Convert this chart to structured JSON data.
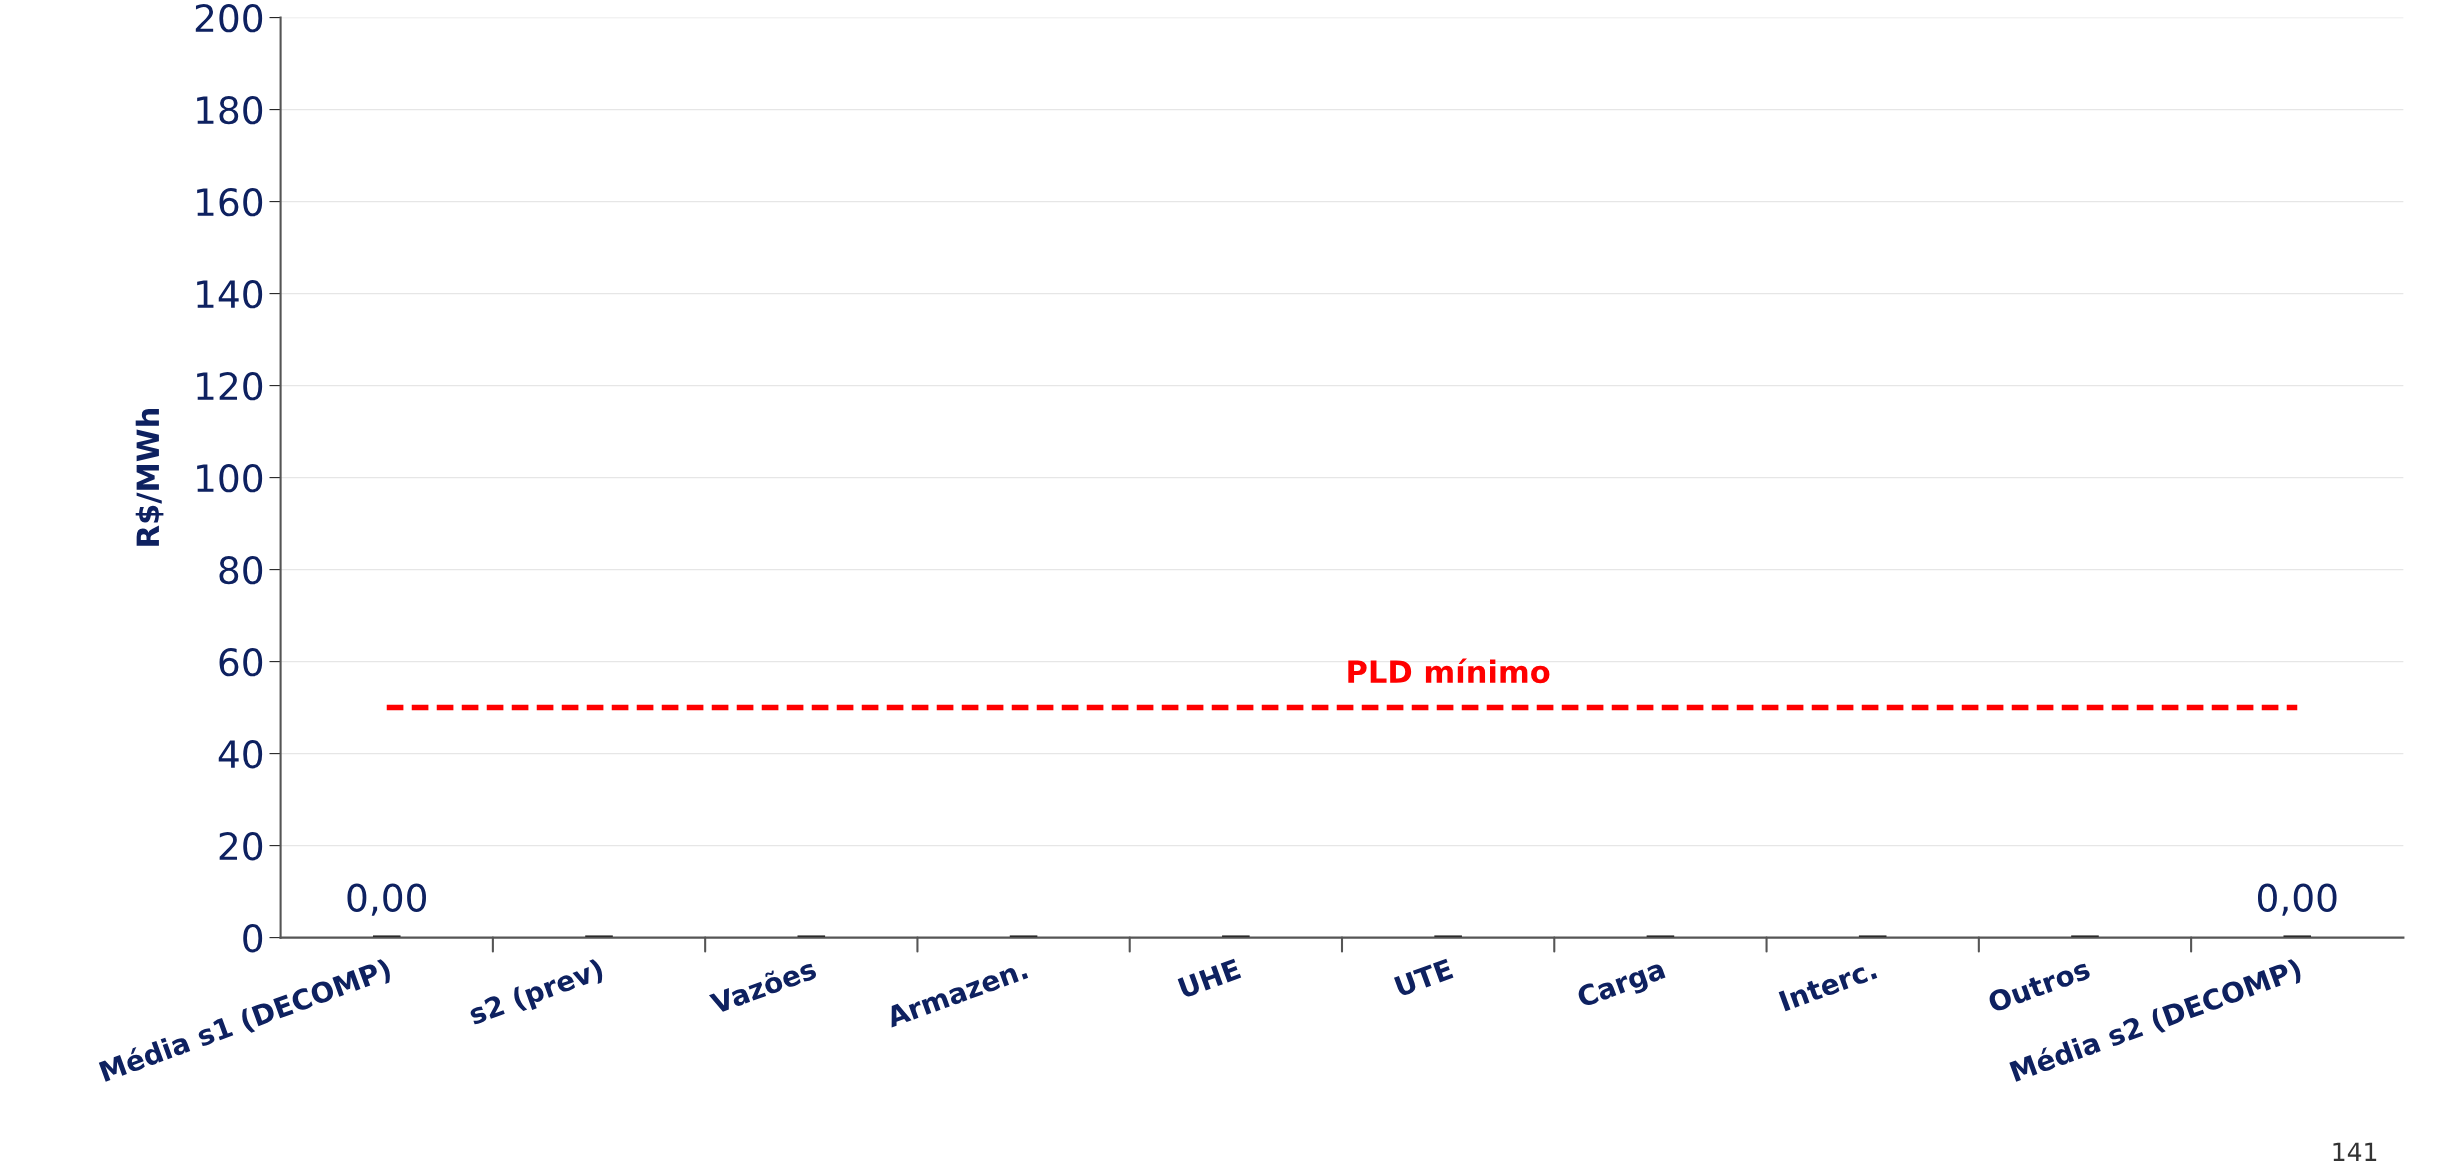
{
  "chart_data": {
    "type": "bar",
    "ylabel": "R$/MWh",
    "categories": [
      "Média s1 (DECOMP)",
      "s2 (prev)",
      "Vazões",
      "Armazen.",
      "UHE",
      "UTE",
      "Carga",
      "Interc.",
      "Outros",
      "Média s2 (DECOMP)"
    ],
    "values": [
      0,
      0,
      0,
      0,
      0,
      0,
      0,
      0,
      0,
      0
    ],
    "base": [
      0,
      0,
      0,
      0,
      0,
      0,
      0,
      0,
      0,
      0
    ],
    "value_labels": [
      "0,00",
      null,
      null,
      null,
      null,
      null,
      null,
      null,
      null,
      "0,00"
    ],
    "color": "#000000",
    "ylim": [
      0,
      200
    ],
    "yticks": [
      0,
      20,
      40,
      60,
      80,
      100,
      120,
      140,
      160,
      180,
      200
    ],
    "grid": "y",
    "ref_lines": [
      {
        "axis": "y",
        "value": 50,
        "label": "PLD mínimo",
        "color": "#ff0000",
        "line_style": "dashed"
      }
    ],
    "annotations": [
      "141"
    ]
  }
}
